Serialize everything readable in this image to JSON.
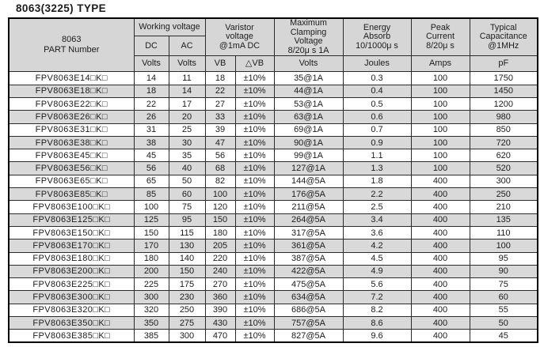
{
  "page_title": "8063(3225) TYPE",
  "colors": {
    "header_bg": "#d6d6d6",
    "stripe_bg": "#d9d9d9",
    "border": "#2b2b2b",
    "text": "#1c1c1c",
    "background": "#ffffff"
  },
  "table": {
    "header": {
      "part_number": "8063\nPART Number",
      "working_voltage": "Working voltage",
      "dc": "DC",
      "ac": "AC",
      "varistor_voltage": "Varistor\nvoltage\n@1mA DC",
      "max_clamping": "Maximum\nClamping\nVoltage\n8/20μ s 1A",
      "energy_absorb": "Energy\nAbsorb\n10/1000μ s",
      "peak_current": "Peak\nCurrent\n8/20μ s",
      "typical_capacitance": "Typical\nCapacitance\n@1MHz"
    },
    "units": [
      "Volts",
      "Volts",
      "VB",
      "△VB",
      "Volts",
      "Joules",
      "Amps",
      "pF"
    ],
    "rows": [
      [
        "FPV8063E14□K□",
        "14",
        "11",
        "18",
        "±10%",
        "35@1A",
        "0.3",
        "100",
        "1750"
      ],
      [
        "FPV8063E18□K□",
        "18",
        "14",
        "22",
        "±10%",
        "44@1A",
        "0.4",
        "100",
        "1450"
      ],
      [
        "FPV8063E22□K□",
        "22",
        "17",
        "27",
        "±10%",
        "53@1A",
        "0.5",
        "100",
        "1200"
      ],
      [
        "FPV8063E26□K□",
        "26",
        "20",
        "33",
        "±10%",
        "63@1A",
        "0.6",
        "100",
        "980"
      ],
      [
        "FPV8063E31□K□",
        "31",
        "25",
        "39",
        "±10%",
        "69@1A",
        "0.7",
        "100",
        "850"
      ],
      [
        "FPV8063E38□K□",
        "38",
        "30",
        "47",
        "±10%",
        "90@1A",
        "0.9",
        "100",
        "720"
      ],
      [
        "FPV8063E45□K□",
        "45",
        "35",
        "56",
        "±10%",
        "99@1A",
        "1.1",
        "100",
        "620"
      ],
      [
        "FPV8063E56□K□",
        "56",
        "40",
        "68",
        "±10%",
        "127@1A",
        "1.3",
        "100",
        "520"
      ],
      [
        "FPV8063E65□K□",
        "65",
        "50",
        "82",
        "±10%",
        "144@5A",
        "1.8",
        "400",
        "300"
      ],
      [
        "FPV8063E85□K□",
        "85",
        "60",
        "100",
        "±10%",
        "176@5A",
        "2.2",
        "400",
        "250"
      ],
      [
        "FPV8063E100□K□",
        "100",
        "75",
        "120",
        "±10%",
        "211@5A",
        "2.5",
        "400",
        "210"
      ],
      [
        "FPV8063E125□K□",
        "125",
        "95",
        "150",
        "±10%",
        "264@5A",
        "3.4",
        "400",
        "135"
      ],
      [
        "FPV8063E150□K□",
        "150",
        "115",
        "180",
        "±10%",
        "317@5A",
        "3.6",
        "400",
        "110"
      ],
      [
        "FPV8063E170□K□",
        "170",
        "130",
        "205",
        "±10%",
        "361@5A",
        "4.2",
        "400",
        "100"
      ],
      [
        "FPV8063E180□K□",
        "180",
        "140",
        "220",
        "±10%",
        "387@5A",
        "4.5",
        "400",
        "95"
      ],
      [
        "FPV8063E200□K□",
        "200",
        "150",
        "240",
        "±10%",
        "422@5A",
        "4.9",
        "400",
        "90"
      ],
      [
        "FPV8063E225□K□",
        "225",
        "175",
        "270",
        "±10%",
        "475@5A",
        "5.6",
        "400",
        "75"
      ],
      [
        "FPV8063E300□K□",
        "300",
        "230",
        "360",
        "±10%",
        "634@5A",
        "7.2",
        "400",
        "60"
      ],
      [
        "FPV8063E320□K□",
        "320",
        "250",
        "390",
        "±10%",
        "686@5A",
        "8.2",
        "400",
        "55"
      ],
      [
        "FPV8063E350□K□",
        "350",
        "275",
        "430",
        "±10%",
        "757@5A",
        "8.6",
        "400",
        "50"
      ],
      [
        "FPV8063E385□K□",
        "385",
        "300",
        "470",
        "±10%",
        "827@5A",
        "9.6",
        "400",
        "45"
      ]
    ]
  }
}
